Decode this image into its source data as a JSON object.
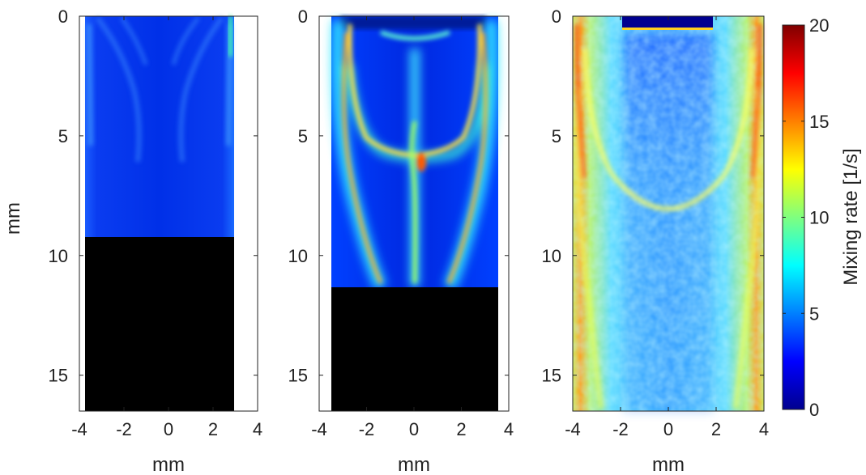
{
  "chart_data": [
    {
      "type": "heatmap",
      "panel": 1,
      "xlabel": "mm",
      "ylabel": "mm",
      "xlim": [
        -4,
        4
      ],
      "ylim": [
        0,
        16.5
      ],
      "y_reversed": true,
      "xticks": [
        "-4",
        "-2",
        "0",
        "2",
        "4"
      ],
      "yticks": [
        "0",
        "5",
        "10",
        "15"
      ],
      "data_region": {
        "x": [
          -3.1,
          3.1
        ],
        "y": [
          0,
          9.2
        ]
      },
      "masked_region": {
        "x": [
          -3.1,
          3.1
        ],
        "y": [
          9.2,
          16.5
        ],
        "color": "#000000"
      },
      "typical_range": [
        1,
        6
      ]
    },
    {
      "type": "heatmap",
      "panel": 2,
      "xlabel": "mm",
      "ylabel": "",
      "xlim": [
        -4,
        4
      ],
      "ylim": [
        0,
        16.5
      ],
      "y_reversed": true,
      "xticks": [
        "-4",
        "-2",
        "0",
        "2",
        "4"
      ],
      "yticks": [
        "0",
        "5",
        "10",
        "15"
      ],
      "data_region": {
        "x": [
          -3.6,
          3.6
        ],
        "y": [
          0,
          11.3
        ]
      },
      "masked_region": {
        "x": [
          -3.6,
          3.6
        ],
        "y": [
          11.3,
          16.5
        ],
        "color": "#000000"
      },
      "typical_range": [
        2,
        14
      ]
    },
    {
      "type": "heatmap",
      "panel": 3,
      "xlabel": "mm",
      "ylabel": "",
      "xlim": [
        -4,
        4
      ],
      "ylim": [
        0,
        16.5
      ],
      "y_reversed": true,
      "xticks": [
        "-4",
        "-2",
        "0",
        "2",
        "4"
      ],
      "yticks": [
        "0",
        "5",
        "10",
        "15"
      ],
      "data_region": {
        "x": [
          -4,
          4
        ],
        "y": [
          0,
          16.5
        ]
      },
      "inset_region": {
        "x": [
          -1.9,
          1.9
        ],
        "y": [
          0,
          0.55
        ],
        "value": 0
      },
      "typical_range": [
        3,
        15
      ]
    }
  ],
  "colorbar": {
    "label": "Mixing rate [1/s]",
    "min": 0,
    "max": 20,
    "ticks": [
      "0",
      "5",
      "10",
      "15",
      "20"
    ],
    "colormap": "jet"
  }
}
